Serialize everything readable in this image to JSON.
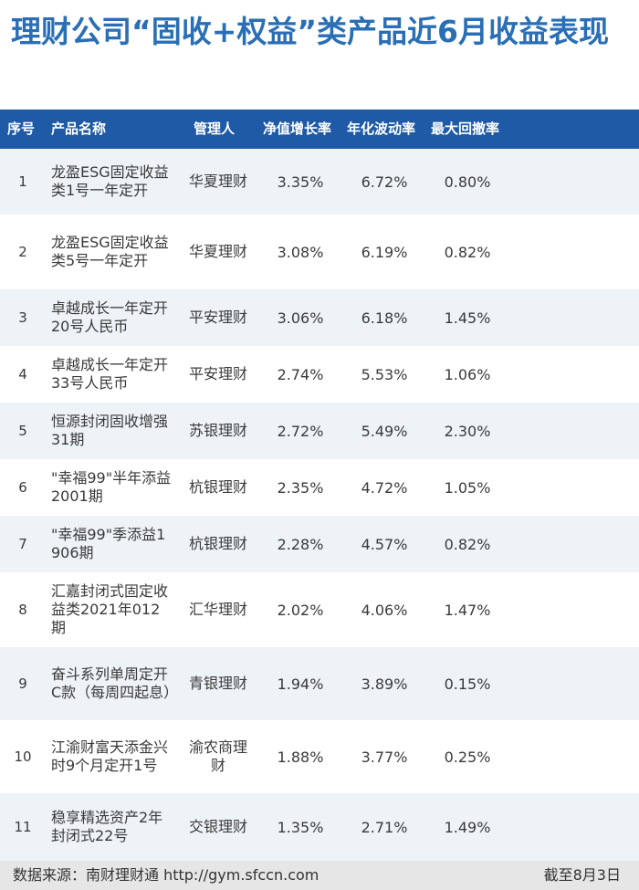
{
  "title": "理财公司“固收+权益”类产品近6月收益表现",
  "table": {
    "headers": {
      "no": "序号",
      "name": "产品名称",
      "manager": "管理人",
      "nav_growth": "净值增长率",
      "volatility": "年化波动率",
      "max_drawdown": "最大回撤率"
    },
    "rows": [
      {
        "no": "1",
        "name": "龙盈ESG固定收益类1号一年定开",
        "manager": "华夏理财",
        "nav_growth": "3.35%",
        "volatility": "6.72%",
        "max_drawdown": "0.80%"
      },
      {
        "no": "2",
        "name": "龙盈ESG固定收益类5号一年定开",
        "manager": "华夏理财",
        "nav_growth": "3.08%",
        "volatility": "6.19%",
        "max_drawdown": "0.82%"
      },
      {
        "no": "3",
        "name": "卓越成长一年定开20号人民币",
        "manager": "平安理财",
        "nav_growth": "3.06%",
        "volatility": "6.18%",
        "max_drawdown": "1.45%"
      },
      {
        "no": "4",
        "name": "卓越成长一年定开33号人民币",
        "manager": "平安理财",
        "nav_growth": "2.74%",
        "volatility": "5.53%",
        "max_drawdown": "1.06%"
      },
      {
        "no": "5",
        "name": "恒源封闭固收增强31期",
        "manager": "苏银理财",
        "nav_growth": "2.72%",
        "volatility": "5.49%",
        "max_drawdown": "2.30%"
      },
      {
        "no": "6",
        "name": "\"幸福99\"半年添益2001期",
        "manager": "杭银理财",
        "nav_growth": "2.35%",
        "volatility": "4.72%",
        "max_drawdown": "1.05%"
      },
      {
        "no": "7",
        "name": "\"幸福99\"季添益1906期",
        "manager": "杭银理财",
        "nav_growth": "2.28%",
        "volatility": "4.57%",
        "max_drawdown": "0.82%"
      },
      {
        "no": "8",
        "name": "汇嘉封闭式固定收益类2021年012期",
        "manager": "汇华理财",
        "nav_growth": "2.02%",
        "volatility": "4.06%",
        "max_drawdown": "1.47%"
      },
      {
        "no": "9",
        "name": "奋斗系列单周定开C款（每周四起息）",
        "manager": "青银理财",
        "nav_growth": "1.94%",
        "volatility": "3.89%",
        "max_drawdown": "0.15%"
      },
      {
        "no": "10",
        "name": "江渝财富天添金兴时9个月定开1号",
        "manager": "渝农商理财",
        "nav_growth": "1.88%",
        "volatility": "3.77%",
        "max_drawdown": "0.25%"
      },
      {
        "no": "11",
        "name": "稳享精选资产2年封闭式22号",
        "manager": "交银理财",
        "nav_growth": "1.35%",
        "volatility": "2.71%",
        "max_drawdown": "1.49%"
      }
    ]
  },
  "footer": {
    "source": "数据来源：南财理财通 http://gym.sfccn.com",
    "date": "截至8月3日"
  }
}
